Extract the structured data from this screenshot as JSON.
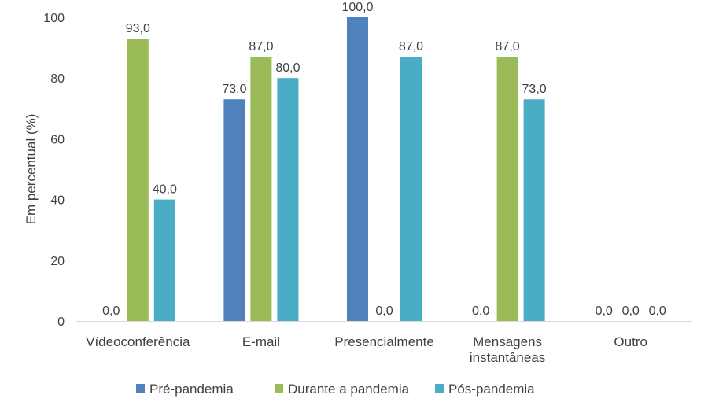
{
  "chart_data": {
    "type": "bar",
    "title": "",
    "xlabel": "",
    "ylabel": "Em percentual (%)",
    "ylim": [
      0,
      100
    ],
    "yticks": [
      "0",
      "20",
      "40",
      "60",
      "80",
      "100"
    ],
    "grid": false,
    "legend_position": "bottom",
    "categories": [
      "Vídeoconferência",
      "E-mail",
      "Presencialmente",
      "Mensagens instantâneas",
      "Outro"
    ],
    "series": [
      {
        "name": "Pré-pandemia",
        "color": "#4f81bd",
        "values": [
          0,
          73,
          100,
          0,
          0
        ],
        "labels": [
          "0,0",
          "73,0",
          "100,0",
          "0,0",
          "0,0"
        ]
      },
      {
        "name": "Durante a pandemia",
        "color": "#9bbb59",
        "values": [
          93,
          87,
          0,
          87,
          0
        ],
        "labels": [
          "93,0",
          "87,0",
          "0,0",
          "87,0",
          "0,0"
        ]
      },
      {
        "name": "Pós-pandemia",
        "color": "#4bacc6",
        "values": [
          40,
          80,
          87,
          73,
          0
        ],
        "labels": [
          "40,0",
          "80,0",
          "87,0",
          "73,0",
          "0,0"
        ]
      }
    ]
  }
}
